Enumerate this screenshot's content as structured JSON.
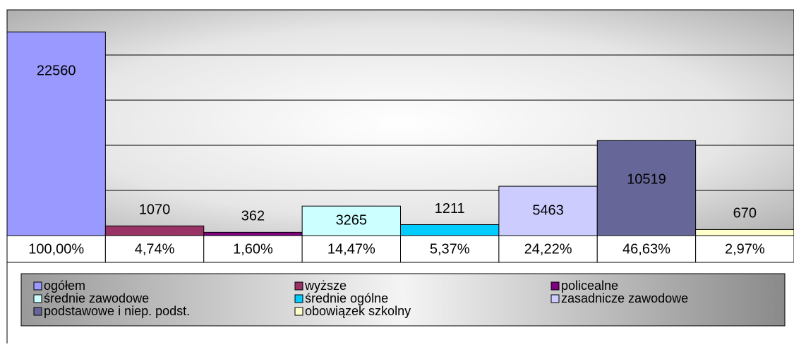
{
  "chart_data": {
    "type": "bar",
    "categories": [
      "ogółem",
      "wyższe",
      "policealne",
      "średnie zawodowe",
      "średnie ogólne",
      "zasadnicze zawodowe",
      "podstawowe i niep. podst.",
      "obowiązek szkolny"
    ],
    "values": [
      22560,
      1070,
      362,
      3265,
      1211,
      5463,
      10519,
      670
    ],
    "colors": [
      "#9999ff",
      "#993366",
      "#800080",
      "#ccffff",
      "#00ccff",
      "#ccccff",
      "#666699",
      "#ffffcc"
    ],
    "shares": [
      100,
      4.74,
      1.6,
      14.47,
      5.37,
      24.22,
      46.63,
      2.97
    ],
    "share_labels": [
      "100,00%",
      "4,74%",
      "1,60%",
      "14,47%",
      "5,37%",
      "24,22%",
      "46,63%",
      "2,97%"
    ],
    "ylim": [
      0,
      25000
    ],
    "yticks": [
      0,
      5000,
      10000,
      15000,
      20000,
      25000
    ],
    "grid": true
  }
}
